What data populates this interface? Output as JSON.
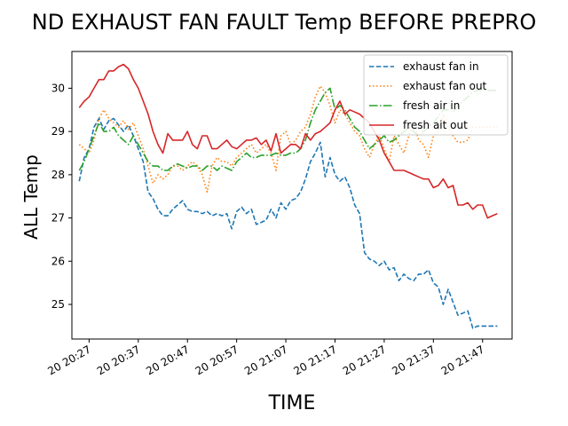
{
  "chart_data": {
    "type": "line",
    "title": "ND EXHAUST FAN FAULT Temp BEFORE PREPRO",
    "xlabel": "TIME",
    "ylabel": "ALL Temp",
    "x_tick_labels": [
      "20 20:27",
      "20 20:37",
      "20 20:47",
      "20 20:57",
      "20 21:07",
      "20 21:17",
      "20 21:27",
      "20 21:37",
      "20 21:47"
    ],
    "x_tick_minutes": [
      0,
      10,
      20,
      30,
      40,
      50,
      60,
      70,
      80
    ],
    "x_range_minutes": [
      -3.5,
      86
    ],
    "ylim": [
      24.2,
      30.85
    ],
    "y_ticks": [
      25,
      26,
      27,
      28,
      29,
      30
    ],
    "legend_position": "top-right",
    "series": [
      {
        "name": "exhaust fan in",
        "color": "#1f77b4",
        "dash": "dashed",
        "minutes": [
          -2,
          -1,
          0,
          1,
          2,
          3,
          4,
          5,
          6,
          7,
          8,
          9,
          10,
          11,
          12,
          13,
          14,
          15,
          16,
          17,
          18,
          19,
          20,
          21,
          22,
          23,
          24,
          25,
          26,
          27,
          28,
          29,
          30,
          31,
          32,
          33,
          34,
          35,
          36,
          37,
          38,
          39,
          40,
          41,
          42,
          43,
          44,
          45,
          46,
          47,
          48,
          49,
          50,
          51,
          52,
          53,
          54,
          55,
          56,
          57,
          58,
          59,
          60,
          61,
          62,
          63,
          64,
          65,
          66,
          67,
          68,
          69,
          70,
          71,
          72,
          73,
          74,
          75,
          76,
          77,
          78,
          79,
          80,
          81,
          82,
          83
        ],
        "values": [
          27.85,
          28.4,
          28.6,
          29.1,
          29.3,
          29.05,
          29.25,
          29.3,
          29.15,
          29.0,
          29.15,
          28.9,
          28.6,
          28.3,
          27.6,
          27.45,
          27.2,
          27.05,
          27.05,
          27.2,
          27.3,
          27.4,
          27.2,
          27.15,
          27.15,
          27.1,
          27.15,
          27.05,
          27.1,
          27.05,
          27.1,
          26.75,
          27.15,
          27.25,
          27.1,
          27.2,
          26.85,
          26.9,
          26.95,
          27.2,
          27.0,
          27.35,
          27.2,
          27.4,
          27.45,
          27.6,
          27.9,
          28.3,
          28.5,
          28.75,
          27.95,
          28.4,
          28.0,
          27.85,
          27.95,
          27.7,
          27.3,
          27.1,
          26.2,
          26.05,
          26.0,
          25.9,
          26.0,
          25.8,
          25.85,
          25.55,
          25.7,
          25.6,
          25.55,
          25.7,
          25.7,
          25.8,
          25.5,
          25.4,
          25.0,
          25.35,
          25.05,
          24.75,
          24.8,
          24.85,
          24.45,
          24.5,
          24.5,
          24.5,
          24.5,
          24.5
        ]
      },
      {
        "name": "exhaust fan out",
        "color": "#ff7f0e",
        "dash": "dotted",
        "minutes": [
          -2,
          -1,
          0,
          1,
          2,
          3,
          4,
          5,
          6,
          7,
          8,
          9,
          10,
          11,
          12,
          13,
          14,
          15,
          16,
          17,
          18,
          19,
          20,
          21,
          22,
          23,
          24,
          25,
          26,
          27,
          28,
          29,
          30,
          31,
          32,
          33,
          34,
          35,
          36,
          37,
          38,
          39,
          40,
          41,
          42,
          43,
          44,
          45,
          46,
          47,
          48,
          49,
          50,
          51,
          52,
          53,
          54,
          55,
          56,
          57,
          58,
          59,
          60,
          61,
          62,
          63,
          64,
          65,
          66,
          67,
          68,
          69,
          70,
          71,
          72,
          73,
          74,
          75,
          76,
          77,
          78,
          79,
          80,
          81,
          82,
          83
        ],
        "values": [
          28.7,
          28.6,
          28.5,
          28.8,
          29.3,
          29.5,
          29.3,
          29.2,
          29.1,
          29.25,
          29.05,
          29.2,
          28.9,
          28.6,
          28.2,
          27.8,
          28.0,
          27.9,
          28.0,
          28.2,
          28.2,
          28.1,
          28.2,
          28.3,
          28.2,
          28.0,
          27.6,
          28.2,
          28.4,
          28.3,
          28.3,
          28.2,
          28.4,
          28.5,
          28.6,
          28.7,
          28.5,
          28.6,
          28.7,
          28.5,
          28.1,
          28.9,
          29.0,
          28.7,
          28.8,
          29.0,
          29.1,
          29.4,
          29.8,
          30.05,
          29.9,
          29.6,
          29.2,
          29.5,
          29.4,
          29.2,
          29.0,
          28.9,
          28.6,
          28.4,
          28.7,
          28.9,
          28.6,
          28.3,
          28.9,
          28.7,
          28.5,
          28.9,
          29.2,
          28.8,
          28.7,
          28.4,
          28.9,
          29.0,
          29.4,
          29.1,
          28.9,
          28.75,
          28.75,
          28.8,
          29.1,
          29.1,
          29.1,
          29.1,
          29.1,
          29.1
        ]
      },
      {
        "name": "fresh air in",
        "color": "#2ca02c",
        "dash": "dashdot",
        "minutes": [
          -2,
          -1,
          0,
          1,
          2,
          3,
          4,
          5,
          6,
          7,
          8,
          9,
          10,
          11,
          12,
          13,
          14,
          15,
          16,
          17,
          18,
          19,
          20,
          21,
          22,
          23,
          24,
          25,
          26,
          27,
          28,
          29,
          30,
          31,
          32,
          33,
          34,
          35,
          36,
          37,
          38,
          39,
          40,
          41,
          42,
          43,
          44,
          45,
          46,
          47,
          48,
          49,
          50,
          51,
          52,
          53,
          54,
          55,
          56,
          57,
          58,
          59,
          60,
          61,
          62,
          63,
          64,
          65,
          66,
          67,
          68,
          69,
          70,
          71,
          72,
          73,
          74,
          75,
          76,
          77,
          78,
          79,
          80,
          81,
          82,
          83
        ],
        "values": [
          28.1,
          28.3,
          28.6,
          28.9,
          29.2,
          29.0,
          29.0,
          29.1,
          28.9,
          28.8,
          28.7,
          28.9,
          28.7,
          28.5,
          28.3,
          28.2,
          28.2,
          28.1,
          28.1,
          28.2,
          28.25,
          28.2,
          28.15,
          28.2,
          28.2,
          28.1,
          28.2,
          28.2,
          28.1,
          28.2,
          28.15,
          28.1,
          28.3,
          28.4,
          28.5,
          28.4,
          28.4,
          28.45,
          28.45,
          28.45,
          28.5,
          28.45,
          28.45,
          28.5,
          28.5,
          28.6,
          28.8,
          29.2,
          29.5,
          29.7,
          29.9,
          30.0,
          29.5,
          29.6,
          29.5,
          29.3,
          29.1,
          29.0,
          28.8,
          28.6,
          28.7,
          28.8,
          28.9,
          28.75,
          28.8,
          28.9,
          29.0,
          29.1,
          29.0,
          28.9,
          29.0,
          29.1,
          29.2,
          29.35,
          29.5,
          29.5,
          29.45,
          29.6,
          29.7,
          29.8,
          29.9,
          29.95,
          29.95,
          29.95,
          29.95,
          29.95
        ]
      },
      {
        "name": "fresh ait out",
        "color": "#d62728",
        "dash": "solid",
        "minutes": [
          -2,
          -1,
          0,
          1,
          2,
          3,
          4,
          5,
          6,
          7,
          8,
          9,
          10,
          11,
          12,
          13,
          14,
          15,
          16,
          17,
          18,
          19,
          20,
          21,
          22,
          23,
          24,
          25,
          26,
          27,
          28,
          29,
          30,
          31,
          32,
          33,
          34,
          35,
          36,
          37,
          38,
          39,
          40,
          41,
          42,
          43,
          44,
          45,
          46,
          47,
          48,
          49,
          50,
          51,
          52,
          53,
          54,
          55,
          56,
          57,
          58,
          59,
          60,
          61,
          62,
          63,
          64,
          65,
          66,
          67,
          68,
          69,
          70,
          71,
          72,
          73,
          74,
          75,
          76,
          77,
          78,
          79,
          80,
          81,
          82,
          83
        ],
        "values": [
          29.55,
          29.7,
          29.8,
          30.0,
          30.2,
          30.2,
          30.4,
          30.4,
          30.5,
          30.55,
          30.45,
          30.2,
          30.0,
          29.7,
          29.4,
          29.0,
          28.7,
          28.5,
          28.95,
          28.8,
          28.8,
          28.8,
          29.0,
          28.7,
          28.6,
          28.9,
          28.9,
          28.6,
          28.6,
          28.7,
          28.8,
          28.65,
          28.6,
          28.7,
          28.8,
          28.8,
          28.85,
          28.7,
          28.8,
          28.55,
          28.95,
          28.5,
          28.6,
          28.7,
          28.7,
          28.6,
          28.95,
          28.8,
          28.95,
          29.0,
          29.1,
          29.2,
          29.5,
          29.7,
          29.4,
          29.5,
          29.45,
          29.4,
          29.3,
          29.2,
          29.0,
          28.8,
          28.5,
          28.3,
          28.1,
          28.1,
          28.1,
          28.05,
          28.0,
          27.95,
          27.9,
          27.9,
          27.7,
          27.75,
          27.9,
          27.7,
          27.75,
          27.3,
          27.3,
          27.35,
          27.2,
          27.3,
          27.3,
          27.0,
          27.05,
          27.1
        ]
      }
    ]
  }
}
